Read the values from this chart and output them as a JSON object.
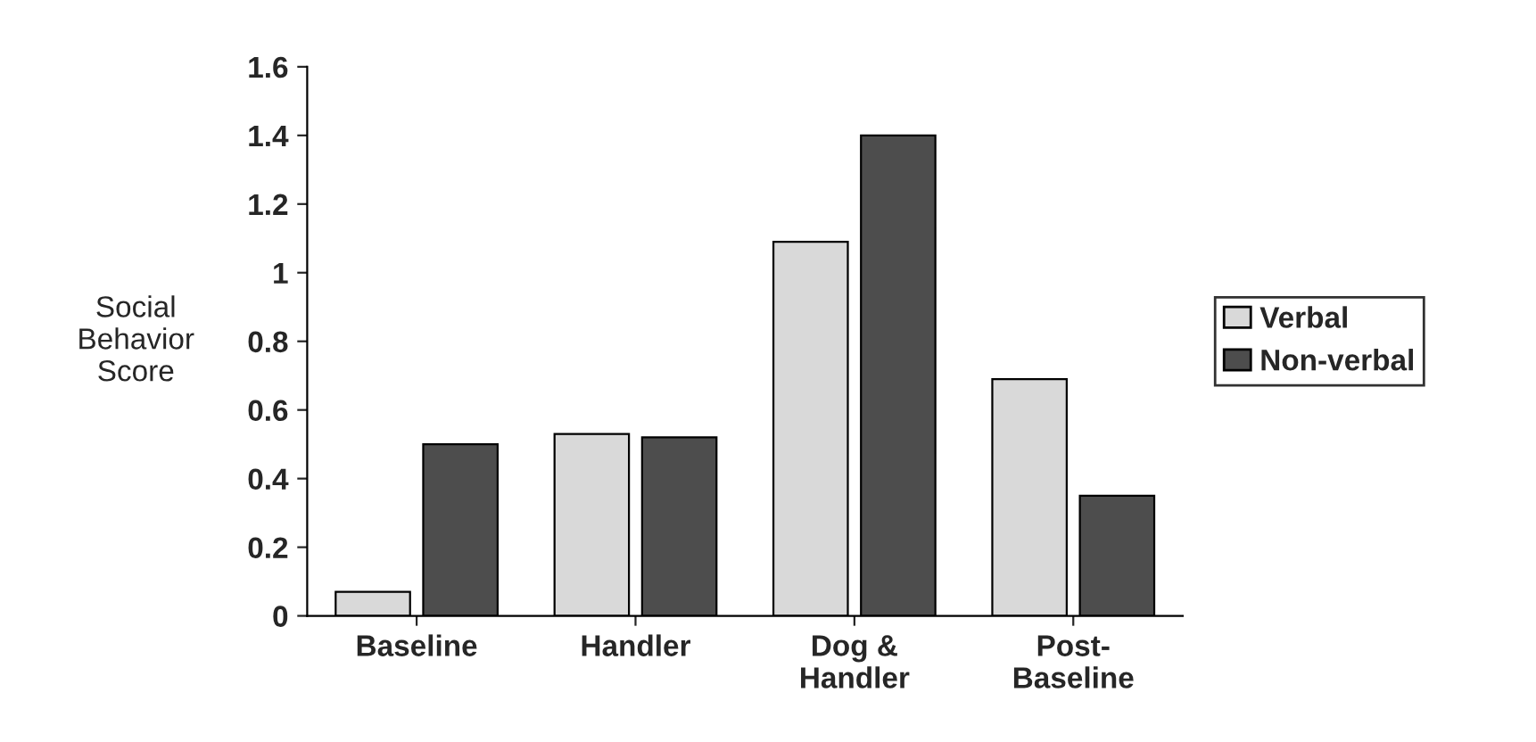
{
  "chart_data": {
    "type": "bar",
    "ylabel": "Social\nBehavior\nScore",
    "categories": [
      "Baseline",
      "Handler",
      "Dog &\nHandler",
      "Post-\nBaseline"
    ],
    "series": [
      {
        "name": "Verbal",
        "color": "#d9d9d9",
        "values": [
          0.07,
          0.53,
          1.09,
          0.69
        ]
      },
      {
        "name": "Non-verbal",
        "color": "#4d4d4d",
        "values": [
          0.5,
          0.52,
          1.4,
          0.35
        ]
      }
    ],
    "ylim": [
      0,
      1.6
    ],
    "yticks": [
      0,
      0.2,
      0.4,
      0.6,
      0.8,
      1,
      1.2,
      1.4,
      1.6
    ],
    "grid": false,
    "legend": "right"
  }
}
